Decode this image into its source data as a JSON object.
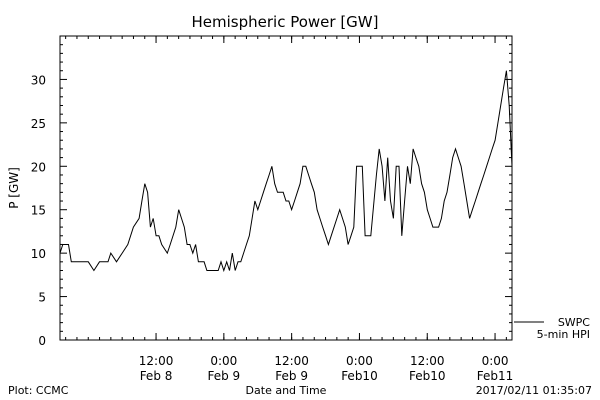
{
  "chart_data": {
    "type": "line",
    "title": "Hemispheric Power [GW]",
    "xlabel": "Date and Time",
    "ylabel": "P [GW]",
    "ylim": [
      0,
      35
    ],
    "xlim": [
      "2017-02-07T19:00",
      "2017-02-11T03:00"
    ],
    "y_ticks": [
      0,
      5,
      10,
      15,
      20,
      25,
      30
    ],
    "x_ticks": [
      {
        "t": "2017-02-08T12:00",
        "line1": "12:00",
        "line2": "Feb 8"
      },
      {
        "t": "2017-02-09T00:00",
        "line1": "0:00",
        "line2": "Feb 9"
      },
      {
        "t": "2017-02-09T12:00",
        "line1": "12:00",
        "line2": "Feb 9"
      },
      {
        "t": "2017-02-10T00:00",
        "line1": "0:00",
        "line2": "Feb10"
      },
      {
        "t": "2017-02-10T12:00",
        "line1": "12:00",
        "line2": "Feb10"
      },
      {
        "t": "2017-02-11T00:00",
        "line1": "0:00",
        "line2": "Feb11"
      }
    ],
    "grid": false,
    "legend_position": "bottom-right",
    "series": [
      {
        "name": "SWPC 5-min HPI",
        "color": "#000000",
        "points": [
          [
            "2017-02-07T19:00",
            10
          ],
          [
            "2017-02-07T19:30",
            11
          ],
          [
            "2017-02-07T20:30",
            11
          ],
          [
            "2017-02-07T21:00",
            9
          ],
          [
            "2017-02-07T23:00",
            9
          ],
          [
            "2017-02-08T00:00",
            9
          ],
          [
            "2017-02-08T01:00",
            8
          ],
          [
            "2017-02-08T02:00",
            9
          ],
          [
            "2017-02-08T03:30",
            9
          ],
          [
            "2017-02-08T04:00",
            10
          ],
          [
            "2017-02-08T05:00",
            9
          ],
          [
            "2017-02-08T06:00",
            10
          ],
          [
            "2017-02-08T07:00",
            11
          ],
          [
            "2017-02-08T08:00",
            13
          ],
          [
            "2017-02-08T09:00",
            14
          ],
          [
            "2017-02-08T09:30",
            16
          ],
          [
            "2017-02-08T10:00",
            18
          ],
          [
            "2017-02-08T10:30",
            17
          ],
          [
            "2017-02-08T11:00",
            13
          ],
          [
            "2017-02-08T11:30",
            14
          ],
          [
            "2017-02-08T12:00",
            12
          ],
          [
            "2017-02-08T12:30",
            12
          ],
          [
            "2017-02-08T13:00",
            11
          ],
          [
            "2017-02-08T14:00",
            10
          ],
          [
            "2017-02-08T14:30",
            11
          ],
          [
            "2017-02-08T15:30",
            13
          ],
          [
            "2017-02-08T16:00",
            15
          ],
          [
            "2017-02-08T16:30",
            14
          ],
          [
            "2017-02-08T17:00",
            13
          ],
          [
            "2017-02-08T17:30",
            11
          ],
          [
            "2017-02-08T18:00",
            11
          ],
          [
            "2017-02-08T18:30",
            10
          ],
          [
            "2017-02-08T19:00",
            11
          ],
          [
            "2017-02-08T19:30",
            9
          ],
          [
            "2017-02-08T20:30",
            9
          ],
          [
            "2017-02-08T21:00",
            8
          ],
          [
            "2017-02-08T23:00",
            8
          ],
          [
            "2017-02-08T23:30",
            9
          ],
          [
            "2017-02-09T00:00",
            8
          ],
          [
            "2017-02-09T00:30",
            9
          ],
          [
            "2017-02-09T01:00",
            8
          ],
          [
            "2017-02-09T01:30",
            10
          ],
          [
            "2017-02-09T02:00",
            8
          ],
          [
            "2017-02-09T02:30",
            9
          ],
          [
            "2017-02-09T03:00",
            9
          ],
          [
            "2017-02-09T03:30",
            10
          ],
          [
            "2017-02-09T04:00",
            11
          ],
          [
            "2017-02-09T04:30",
            12
          ],
          [
            "2017-02-09T05:00",
            14
          ],
          [
            "2017-02-09T05:30",
            16
          ],
          [
            "2017-02-09T06:00",
            15
          ],
          [
            "2017-02-09T06:30",
            16
          ],
          [
            "2017-02-09T07:00",
            17
          ],
          [
            "2017-02-09T07:30",
            18
          ],
          [
            "2017-02-09T08:00",
            19
          ],
          [
            "2017-02-09T08:30",
            20
          ],
          [
            "2017-02-09T09:00",
            18
          ],
          [
            "2017-02-09T09:30",
            17
          ],
          [
            "2017-02-09T10:30",
            17
          ],
          [
            "2017-02-09T11:00",
            16
          ],
          [
            "2017-02-09T11:30",
            16
          ],
          [
            "2017-02-09T12:00",
            15
          ],
          [
            "2017-02-09T12:30",
            16
          ],
          [
            "2017-02-09T13:00",
            17
          ],
          [
            "2017-02-09T13:30",
            18
          ],
          [
            "2017-02-09T14:00",
            20
          ],
          [
            "2017-02-09T14:30",
            20
          ],
          [
            "2017-02-09T15:00",
            19
          ],
          [
            "2017-02-09T15:30",
            18
          ],
          [
            "2017-02-09T16:00",
            17
          ],
          [
            "2017-02-09T16:30",
            15
          ],
          [
            "2017-02-09T17:00",
            14
          ],
          [
            "2017-02-09T17:30",
            13
          ],
          [
            "2017-02-09T18:00",
            12
          ],
          [
            "2017-02-09T18:30",
            11
          ],
          [
            "2017-02-09T19:00",
            12
          ],
          [
            "2017-02-09T20:00",
            14
          ],
          [
            "2017-02-09T20:30",
            15
          ],
          [
            "2017-02-09T21:00",
            14
          ],
          [
            "2017-02-09T21:30",
            13
          ],
          [
            "2017-02-09T22:00",
            11
          ],
          [
            "2017-02-09T22:30",
            12
          ],
          [
            "2017-02-09T23:00",
            13
          ],
          [
            "2017-02-09T23:30",
            20
          ],
          [
            "2017-02-10T00:30",
            20
          ],
          [
            "2017-02-10T01:00",
            12
          ],
          [
            "2017-02-10T02:00",
            12
          ],
          [
            "2017-02-10T03:00",
            19
          ],
          [
            "2017-02-10T03:30",
            22
          ],
          [
            "2017-02-10T04:00",
            20
          ],
          [
            "2017-02-10T04:30",
            16
          ],
          [
            "2017-02-10T05:00",
            21
          ],
          [
            "2017-02-10T05:30",
            16
          ],
          [
            "2017-02-10T06:00",
            14
          ],
          [
            "2017-02-10T06:30",
            20
          ],
          [
            "2017-02-10T07:00",
            20
          ],
          [
            "2017-02-10T07:30",
            12
          ],
          [
            "2017-02-10T08:00",
            16
          ],
          [
            "2017-02-10T08:30",
            20
          ],
          [
            "2017-02-10T09:00",
            18
          ],
          [
            "2017-02-10T09:30",
            22
          ],
          [
            "2017-02-10T10:00",
            21
          ],
          [
            "2017-02-10T10:30",
            20
          ],
          [
            "2017-02-10T11:00",
            18
          ],
          [
            "2017-02-10T11:30",
            17
          ],
          [
            "2017-02-10T12:00",
            15
          ],
          [
            "2017-02-10T12:30",
            14
          ],
          [
            "2017-02-10T13:00",
            13
          ],
          [
            "2017-02-10T14:00",
            13
          ],
          [
            "2017-02-10T14:30",
            14
          ],
          [
            "2017-02-10T15:00",
            16
          ],
          [
            "2017-02-10T15:30",
            17
          ],
          [
            "2017-02-10T16:00",
            19
          ],
          [
            "2017-02-10T16:30",
            21
          ],
          [
            "2017-02-10T17:00",
            22
          ],
          [
            "2017-02-10T17:30",
            21
          ],
          [
            "2017-02-10T18:00",
            20
          ],
          [
            "2017-02-10T18:30",
            18
          ],
          [
            "2017-02-10T19:00",
            16
          ],
          [
            "2017-02-10T19:30",
            14
          ],
          [
            "2017-02-10T20:00",
            15
          ],
          [
            "2017-02-10T20:30",
            16
          ],
          [
            "2017-02-10T21:00",
            17
          ],
          [
            "2017-02-10T21:30",
            18
          ],
          [
            "2017-02-10T22:00",
            19
          ],
          [
            "2017-02-10T22:30",
            20
          ],
          [
            "2017-02-10T23:00",
            21
          ],
          [
            "2017-02-10T23:30",
            22
          ],
          [
            "2017-02-11T00:00",
            23
          ],
          [
            "2017-02-11T00:30",
            25
          ],
          [
            "2017-02-11T01:00",
            27
          ],
          [
            "2017-02-11T01:30",
            29
          ],
          [
            "2017-02-11T02:00",
            31
          ],
          [
            "2017-02-11T02:30",
            27
          ],
          [
            "2017-02-11T03:00",
            20
          ]
        ]
      }
    ]
  },
  "footer": {
    "left": "Plot: CCMC",
    "timestamp": "2017/02/11 01:35:07"
  },
  "legend": {
    "line1": "SWPC",
    "line2": "5-min HPI"
  }
}
